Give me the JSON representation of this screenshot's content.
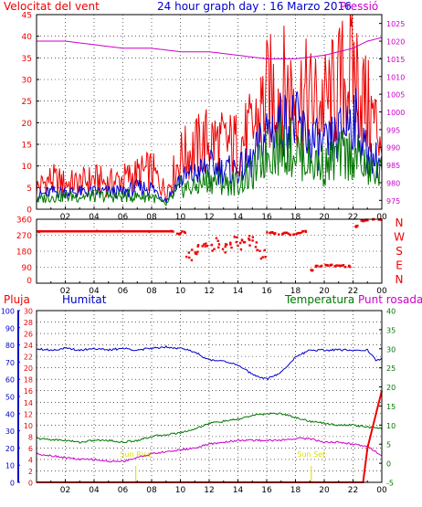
{
  "colors": {
    "red": "#ee0000",
    "blue": "#0000cc",
    "green": "#007700",
    "magenta": "#cc00cc",
    "yellow": "#dddd00",
    "frame": "#000000",
    "bg": "#ffffff"
  },
  "chart_data": [
    {
      "type": "line",
      "title": "24 hour graph day : 16 Marzo 2016",
      "y_left_label": "Velocitat del vent",
      "y_right_label": "Pressió",
      "y_left_ticks": [
        "0",
        "5",
        "10",
        "15",
        "20",
        "25",
        "30",
        "35",
        "40",
        "45"
      ],
      "y_right_ticks": [
        "975",
        "980",
        "985",
        "990",
        "995",
        "1000",
        "1005",
        "1010",
        "1015",
        "1020",
        "1025"
      ],
      "ylim_left": [
        0,
        45
      ],
      "ylim_right": [
        972.5,
        1027.5
      ],
      "x_ticks": [
        "02",
        "04",
        "06",
        "08",
        "10",
        "12",
        "14",
        "16",
        "18",
        "20",
        "22",
        "00"
      ],
      "xlim": [
        0,
        24
      ],
      "series": [
        {
          "name": "Velocitat del vent",
          "color": "red",
          "x": [
            0,
            1,
            2,
            3,
            4,
            5,
            6,
            7,
            8,
            9,
            10,
            11,
            12,
            13,
            14,
            15,
            16,
            17,
            18,
            19,
            20,
            21,
            22,
            23,
            24
          ],
          "values": [
            5,
            7,
            6,
            6,
            7,
            6,
            7,
            8,
            9,
            4,
            12,
            14,
            16,
            15,
            15,
            18,
            26,
            28,
            27,
            25,
            24,
            28,
            33,
            23,
            17
          ]
        },
        {
          "color": "blue",
          "x": [
            0,
            1,
            2,
            3,
            4,
            5,
            6,
            7,
            8,
            9,
            10,
            11,
            12,
            13,
            14,
            15,
            16,
            17,
            18,
            19,
            20,
            21,
            22,
            23,
            24
          ],
          "values": [
            3,
            4,
            4,
            4,
            4,
            4,
            4,
            5,
            5,
            2,
            7,
            8,
            10,
            9,
            9,
            11,
            18,
            20,
            20,
            16,
            14,
            17,
            22,
            12,
            11
          ]
        },
        {
          "color": "green",
          "x": [
            0,
            1,
            2,
            3,
            4,
            5,
            6,
            7,
            8,
            9,
            10,
            11,
            12,
            13,
            14,
            15,
            16,
            17,
            18,
            19,
            20,
            21,
            22,
            23,
            24
          ],
          "values": [
            2,
            3,
            3,
            3,
            3,
            3,
            3,
            3,
            3,
            1,
            5,
            5,
            7,
            6,
            6,
            8,
            13,
            15,
            14,
            11,
            10,
            12,
            13,
            9,
            8
          ]
        },
        {
          "name": "Pressió",
          "color": "magenta",
          "axis": "right",
          "x": [
            0,
            2,
            4,
            6,
            8,
            10,
            12,
            14,
            16,
            18,
            20,
            22,
            23,
            24
          ],
          "values": [
            1020,
            1020,
            1019,
            1018,
            1018,
            1017,
            1017,
            1016,
            1015,
            1015,
            1016,
            1018,
            1020,
            1021
          ]
        }
      ]
    },
    {
      "type": "scatter",
      "y_ticks": [
        "360",
        "270",
        "180",
        "90",
        "0"
      ],
      "y_right_labels": [
        "N",
        "W",
        "S",
        "E",
        "N"
      ],
      "ylim": [
        0,
        360
      ],
      "x_ticks": [
        "02",
        "04",
        "06",
        "08",
        "10",
        "12",
        "14",
        "16",
        "18",
        "20",
        "22",
        "00"
      ],
      "xlim": [
        0,
        24
      ],
      "series": [
        {
          "color": "red",
          "x": [
            0,
            2,
            4,
            6,
            8,
            9.4,
            9.8,
            10.2,
            10.6,
            11,
            11.4,
            11.8,
            12.2,
            12.6,
            13,
            13.4,
            13.8,
            14.2,
            14.6,
            15,
            15.4,
            15.8,
            16.2,
            16.6,
            17,
            17.4,
            17.8,
            18.2,
            18.6,
            19.2,
            19.6,
            20,
            20.4,
            20.8,
            21.2,
            21.6,
            22.2,
            22.6,
            23,
            23.4,
            23.8
          ],
          "values": [
            292,
            292,
            292,
            292,
            292,
            292,
            275,
            263,
            150,
            165,
            200,
            220,
            210,
            230,
            200,
            225,
            240,
            220,
            245,
            230,
            200,
            160,
            285,
            280,
            278,
            282,
            276,
            280,
            290,
            75,
            95,
            100,
            102,
            98,
            100,
            95,
            320,
            350,
            355,
            360,
            358
          ]
        }
      ]
    },
    {
      "type": "line",
      "legend": [
        "Pluja",
        "Humitat",
        "Temperatura",
        "Punt rosada"
      ],
      "y_pluja_ticks": [
        "0",
        "2",
        "4",
        "6",
        "8",
        "10",
        "12",
        "14",
        "16",
        "18",
        "20",
        "22",
        "24",
        "26",
        "28",
        "30"
      ],
      "y_hum_ticks": [
        "0",
        "10",
        "20",
        "30",
        "40",
        "50",
        "60",
        "70",
        "80",
        "90",
        "100"
      ],
      "y_temp_ticks": [
        "-5",
        "0",
        "5",
        "10",
        "15",
        "20",
        "25",
        "30",
        "35",
        "40"
      ],
      "ylim_pluja": [
        0,
        30
      ],
      "ylim_hum": [
        0,
        100
      ],
      "ylim_temp": [
        -5,
        40
      ],
      "x_ticks": [
        "02",
        "04",
        "06",
        "08",
        "10",
        "12",
        "14",
        "16",
        "18",
        "20",
        "22",
        "00"
      ],
      "xlim": [
        0,
        24
      ],
      "annotations": [
        {
          "text": "Sun Rise",
          "x": 6.9,
          "color": "yellow"
        },
        {
          "text": "Sun Set",
          "x": 19.1,
          "color": "yellow"
        }
      ],
      "series": [
        {
          "name": "Humitat",
          "color": "blue",
          "axis": "hum",
          "x": [
            0,
            1,
            2,
            3,
            4,
            5,
            6,
            7,
            8,
            9,
            10,
            11,
            12,
            13,
            14,
            15,
            16,
            17,
            18,
            19,
            20,
            21,
            22,
            23,
            23.6,
            24
          ],
          "values": [
            78,
            77,
            78,
            77,
            78,
            77,
            78,
            77,
            78,
            79,
            78,
            76,
            71,
            71,
            68,
            63,
            60,
            64,
            73,
            77,
            77,
            77,
            77,
            77,
            71,
            72
          ]
        },
        {
          "name": "Temperatura",
          "color": "green",
          "axis": "temp",
          "x": [
            0,
            1,
            2,
            3,
            4,
            5,
            6,
            7,
            8,
            9,
            10,
            11,
            12,
            13,
            14,
            15,
            16,
            17,
            18,
            19,
            20,
            21,
            22,
            23,
            24
          ],
          "values": [
            6.5,
            6.2,
            6,
            5.5,
            6,
            6,
            5.5,
            6,
            7,
            7.5,
            8,
            9,
            10.5,
            11,
            11.5,
            12.5,
            13,
            13,
            12,
            11,
            10.5,
            10,
            10,
            9.5,
            9
          ]
        },
        {
          "name": "Punt rosada",
          "color": "magenta",
          "axis": "temp",
          "x": [
            0,
            1,
            2,
            3,
            4,
            5,
            6,
            7,
            8,
            9,
            10,
            11,
            12,
            13,
            14,
            15,
            16,
            17,
            18,
            19,
            20,
            21,
            22,
            23,
            24
          ],
          "values": [
            2.5,
            2,
            1.5,
            1,
            1,
            0.5,
            0.5,
            1.5,
            2.5,
            3,
            3.5,
            4,
            5,
            5.5,
            6,
            6,
            6,
            6,
            6.5,
            6.5,
            5.5,
            5.5,
            5,
            4.5,
            2
          ]
        },
        {
          "name": "Pluja",
          "color": "red",
          "axis": "pluja",
          "x": [
            0,
            22,
            22.7,
            23,
            23.3,
            23.6,
            24
          ],
          "values": [
            0,
            0,
            0,
            6,
            9,
            12,
            16
          ]
        }
      ]
    }
  ]
}
